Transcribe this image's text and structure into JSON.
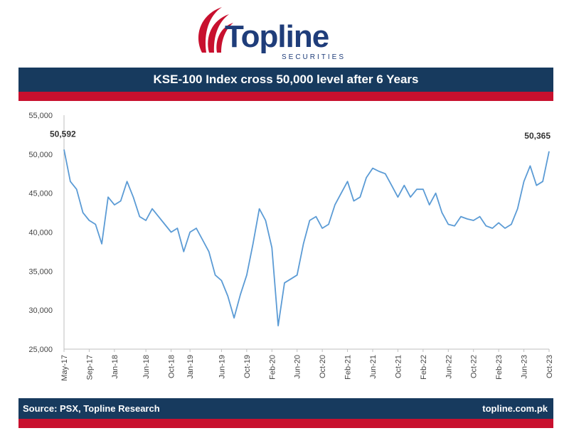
{
  "logo": {
    "name": "Topline",
    "sub": "SECURITIES"
  },
  "banner": {
    "title": "KSE-100 Index cross 50,000 level after 6 Years"
  },
  "footer": {
    "source": "Source: PSX, Topline Research",
    "site": "topline.com.pk"
  },
  "colors": {
    "line": "#5b9bd5",
    "banner": "#173a5e",
    "accent": "#c8102e"
  },
  "chart_data": {
    "type": "line",
    "title": "KSE-100 Index cross 50,000 level after 6 Years",
    "xlabel": "",
    "ylabel": "",
    "ylim": [
      25000,
      55000
    ],
    "yticks": [
      25000,
      30000,
      35000,
      40000,
      45000,
      50000,
      55000
    ],
    "ytick_labels": [
      "25,000",
      "30,000",
      "35,000",
      "40,000",
      "45,000",
      "50,000",
      "55,000"
    ],
    "xlim": [
      "2017-05",
      "2023-10"
    ],
    "xticks": [
      "May-17",
      "Sep-17",
      "Jan-18",
      "Jun-18",
      "Oct-18",
      "Jan-19",
      "Jun-19",
      "Oct-19",
      "Feb-20",
      "Jun-20",
      "Oct-20",
      "Feb-21",
      "Jun-21",
      "Oct-21",
      "Feb-22",
      "Jun-22",
      "Oct-22",
      "Feb-23",
      "Jun-23",
      "Oct-23"
    ],
    "xtick_months": [
      "2017-05",
      "2017-09",
      "2018-01",
      "2018-06",
      "2018-10",
      "2019-01",
      "2019-06",
      "2019-10",
      "2020-02",
      "2020-06",
      "2020-10",
      "2021-02",
      "2021-06",
      "2021-10",
      "2022-02",
      "2022-06",
      "2022-10",
      "2023-02",
      "2023-06",
      "2023-10"
    ],
    "grid": false,
    "legend": "none",
    "annotations": [
      {
        "text": "50,592",
        "x": "2017-05",
        "y": 50592
      },
      {
        "text": "50,365",
        "x": "2023-10",
        "y": 50365
      }
    ],
    "series": [
      {
        "x": [
          "2017-05",
          "2017-06",
          "2017-07",
          "2017-08",
          "2017-09",
          "2017-10",
          "2017-11",
          "2017-12",
          "2018-01",
          "2018-02",
          "2018-03",
          "2018-04",
          "2018-05",
          "2018-06",
          "2018-07",
          "2018-08",
          "2018-09",
          "2018-10",
          "2018-11",
          "2018-12",
          "2019-01",
          "2019-02",
          "2019-03",
          "2019-04",
          "2019-05",
          "2019-06",
          "2019-07",
          "2019-08",
          "2019-09",
          "2019-10",
          "2019-11",
          "2019-12",
          "2020-01",
          "2020-02",
          "2020-03",
          "2020-04",
          "2020-05",
          "2020-06",
          "2020-07",
          "2020-08",
          "2020-09",
          "2020-10",
          "2020-11",
          "2020-12",
          "2021-01",
          "2021-02",
          "2021-03",
          "2021-04",
          "2021-05",
          "2021-06",
          "2021-07",
          "2021-08",
          "2021-09",
          "2021-10",
          "2021-11",
          "2021-12",
          "2022-01",
          "2022-02",
          "2022-03",
          "2022-04",
          "2022-05",
          "2022-06",
          "2022-07",
          "2022-08",
          "2022-09",
          "2022-10",
          "2022-11",
          "2022-12",
          "2023-01",
          "2023-02",
          "2023-03",
          "2023-04",
          "2023-05",
          "2023-06",
          "2023-07",
          "2023-08",
          "2023-09",
          "2023-10"
        ],
        "values": [
          50592,
          46500,
          45500,
          42500,
          41500,
          41000,
          38500,
          44500,
          43500,
          44000,
          46500,
          44500,
          42000,
          41500,
          43000,
          42000,
          41000,
          40000,
          40500,
          37500,
          40000,
          40500,
          39000,
          37500,
          34500,
          33800,
          31800,
          29000,
          32000,
          34500,
          38500,
          43000,
          41500,
          38000,
          28000,
          33500,
          34000,
          34500,
          38500,
          41500,
          42000,
          40500,
          41000,
          43500,
          45000,
          46500,
          44000,
          44500,
          47000,
          48200,
          47800,
          47500,
          46000,
          44500,
          46000,
          44500,
          45500,
          45500,
          43500,
          45000,
          42500,
          41000,
          40800,
          42000,
          41700,
          41500,
          42000,
          40800,
          40500,
          41200,
          40500,
          41000,
          43000,
          46500,
          48500,
          46000,
          46500,
          50365
        ]
      }
    ]
  }
}
